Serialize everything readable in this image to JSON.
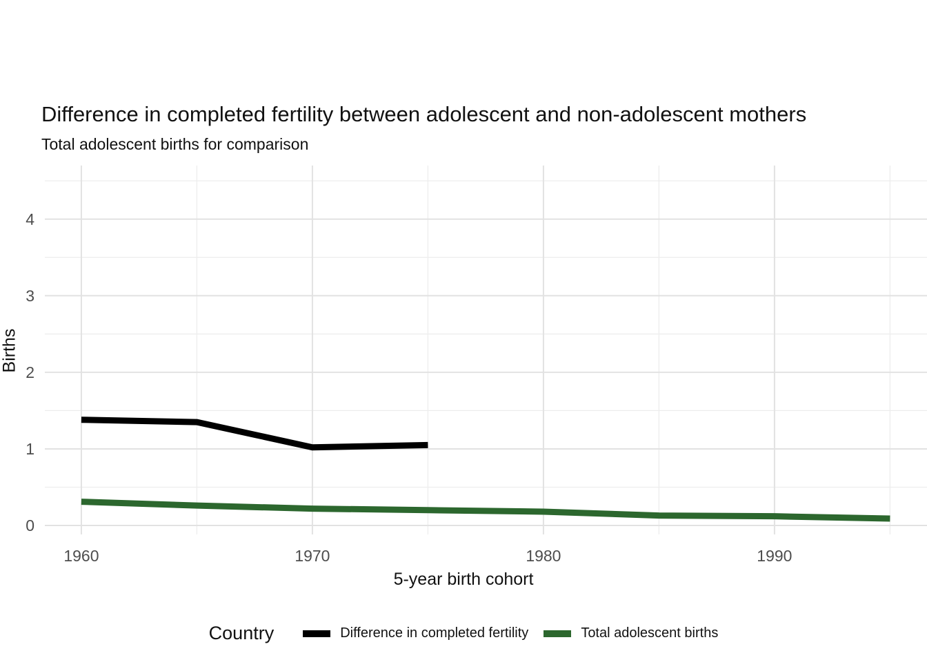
{
  "header": {
    "title": "Difference in completed fertility between adolescent and non-adolescent mothers",
    "subtitle": "Total adolescent births for comparison"
  },
  "colors": {
    "background": "#ffffff",
    "grid_major": "#e2e2e2",
    "grid_minor": "#ededed",
    "tick_label": "#4d4d4d",
    "series_black": "#000000",
    "series_green": "#2c672e"
  },
  "legend": {
    "title": "Country",
    "position": "bottom"
  },
  "chart_data": {
    "type": "line",
    "title": "Difference in completed fertility between adolescent and non-adolescent mothers",
    "subtitle": "Total adolescent births for comparison",
    "xlabel": "5-year birth cohort",
    "ylabel": "Births",
    "xlim": [
      1958.42,
      1996.6
    ],
    "ylim": [
      -0.117,
      4.7
    ],
    "x_ticks": [
      1960,
      1970,
      1980,
      1990
    ],
    "x_minor_ticks": [
      1965,
      1975,
      1985,
      1995
    ],
    "y_ticks": [
      0,
      1,
      2,
      3,
      4
    ],
    "y_minor_ticks": [
      0.5,
      1.5,
      2.5,
      3.5,
      4.5
    ],
    "grid": true,
    "legend_position": "bottom",
    "series": [
      {
        "name": "Difference in completed fertility",
        "color": "#000000",
        "x": [
          1960,
          1965,
          1970,
          1975
        ],
        "y": [
          1.38,
          1.35,
          1.02,
          1.05
        ]
      },
      {
        "name": "Total adolescent births",
        "color": "#2c672e",
        "x": [
          1960,
          1965,
          1970,
          1975,
          1980,
          1985,
          1990,
          1995
        ],
        "y": [
          0.31,
          0.26,
          0.22,
          0.2,
          0.18,
          0.13,
          0.12,
          0.09
        ]
      }
    ]
  }
}
